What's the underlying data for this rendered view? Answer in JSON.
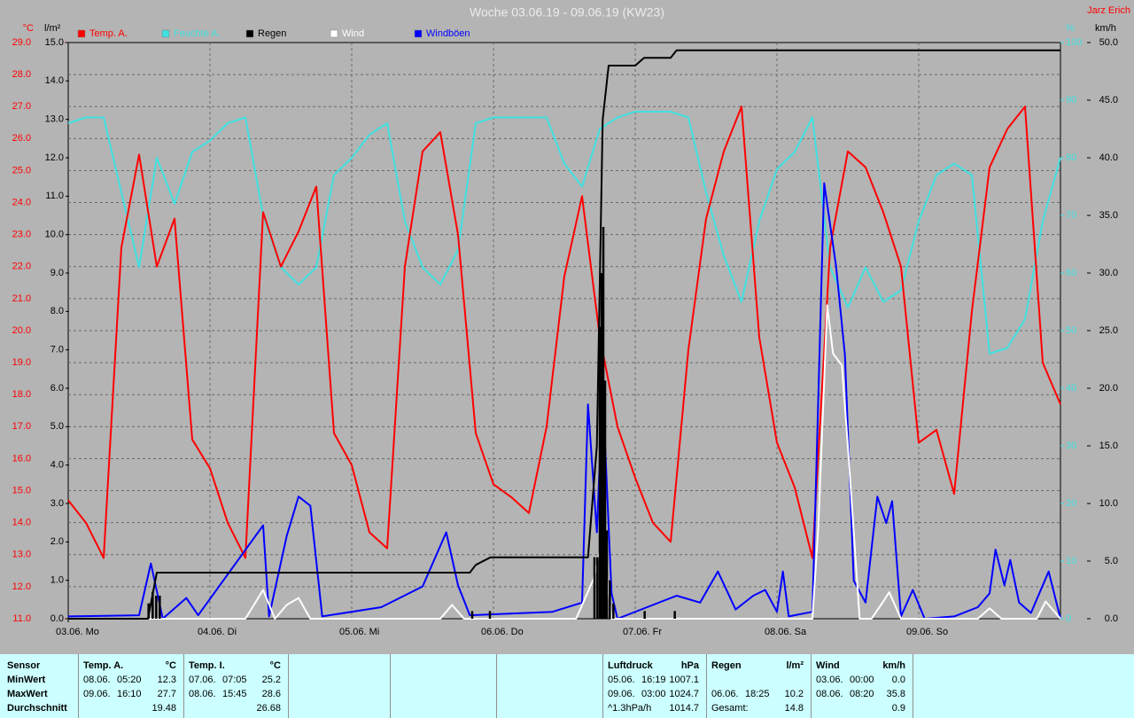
{
  "chart_data": {
    "type": "line",
    "title": "Woche 03.06.19 - 09.06.19 (KW23)",
    "author": "Jarz Erich",
    "x": [
      0,
      3,
      6,
      9,
      12,
      15,
      18,
      21,
      24,
      27,
      30,
      33,
      36,
      39,
      42,
      45,
      48,
      51,
      54,
      57,
      60,
      63,
      66,
      69,
      72,
      75,
      78,
      81,
      84,
      87,
      90,
      93,
      96,
      99,
      102,
      105,
      108,
      111,
      114,
      117,
      120,
      123,
      126,
      129,
      132,
      135,
      138,
      141,
      144,
      147,
      150,
      153,
      156,
      159,
      162,
      165,
      168
    ],
    "xlim": [
      0,
      168
    ],
    "xticks": [
      {
        "value": 0,
        "label": "03.06. Mo"
      },
      {
        "value": 24,
        "label": "04.06. Di"
      },
      {
        "value": 48,
        "label": "05.06. Mi"
      },
      {
        "value": 72,
        "label": "06.06. Do"
      },
      {
        "value": 96,
        "label": "07.06. Fr"
      },
      {
        "value": 120,
        "label": "08.06. Sa"
      },
      {
        "value": 144,
        "label": "09.06. So"
      }
    ],
    "ylabel": "°C",
    "ylim": [
      11,
      29
    ],
    "yticks": [
      {
        "value": 11,
        "label": "11.0"
      },
      {
        "value": 12,
        "label": "12.0"
      },
      {
        "value": 13,
        "label": "13.0"
      },
      {
        "value": 14,
        "label": "14.0"
      },
      {
        "value": 15,
        "label": "15.0"
      },
      {
        "value": 16,
        "label": "16.0"
      },
      {
        "value": 17,
        "label": "17.0"
      },
      {
        "value": 18,
        "label": "18.0"
      },
      {
        "value": 19,
        "label": "19.0"
      },
      {
        "value": 20,
        "label": "20.0"
      },
      {
        "value": 21,
        "label": "21.0"
      },
      {
        "value": 22,
        "label": "22.0"
      },
      {
        "value": 23,
        "label": "23.0"
      },
      {
        "value": 24,
        "label": "24.0"
      },
      {
        "value": 25,
        "label": "25.0"
      },
      {
        "value": 26,
        "label": "26.0"
      },
      {
        "value": 27,
        "label": "27.0"
      },
      {
        "value": 28,
        "label": "28.0"
      },
      {
        "value": 29,
        "label": "29.0"
      }
    ],
    "y2label": "%",
    "y2lim": [
      0,
      100
    ],
    "y2ticks": [
      0,
      10,
      20,
      30,
      40,
      50,
      60,
      70,
      80,
      90,
      100
    ],
    "y3label": "l/m²",
    "y3lim": [
      0,
      15
    ],
    "y3ticks": [
      {
        "value": 0,
        "label": "0.0"
      },
      {
        "value": 1,
        "label": "1.0"
      },
      {
        "value": 2,
        "label": "2.0"
      },
      {
        "value": 3,
        "label": "3.0"
      },
      {
        "value": 4,
        "label": "4.0"
      },
      {
        "value": 5,
        "label": "5.0"
      },
      {
        "value": 6,
        "label": "6.0"
      },
      {
        "value": 7,
        "label": "7.0"
      },
      {
        "value": 8,
        "label": "8.0"
      },
      {
        "value": 9,
        "label": "9.0"
      },
      {
        "value": 10,
        "label": "10.0"
      },
      {
        "value": 11,
        "label": "11.0"
      },
      {
        "value": 12,
        "label": "12.0"
      },
      {
        "value": 13,
        "label": "13.0"
      },
      {
        "value": 14,
        "label": "14.0"
      },
      {
        "value": 15,
        "label": "15.0"
      }
    ],
    "y4label": "km/h",
    "y4lim": [
      0,
      50
    ],
    "y4ticks": [
      {
        "value": 0,
        "label": "0.0"
      },
      {
        "value": 5,
        "label": "5.0"
      },
      {
        "value": 10,
        "label": "10.0"
      },
      {
        "value": 15,
        "label": "15.0"
      },
      {
        "value": 20,
        "label": "20.0"
      },
      {
        "value": 25,
        "label": "25.0"
      },
      {
        "value": 30,
        "label": "30.0"
      },
      {
        "value": 35,
        "label": "35.0"
      },
      {
        "value": 40,
        "label": "40.0"
      },
      {
        "value": 45,
        "label": "45.0"
      },
      {
        "value": 50,
        "label": "50.0"
      }
    ],
    "grid": true,
    "series": [
      {
        "name": "Temp. A.",
        "color": "#ff0000",
        "axis": "y",
        "values": [
          14.7,
          14.0,
          12.9,
          22.6,
          25.5,
          22.0,
          23.5,
          16.6,
          15.7,
          14.0,
          12.9,
          23.7,
          22.0,
          23.1,
          24.5,
          16.8,
          15.8,
          13.7,
          13.2,
          22.0,
          25.6,
          26.2,
          23.0,
          16.8,
          15.2,
          14.8,
          14.3,
          17.0,
          21.7,
          24.2,
          19.8,
          17.0,
          15.4,
          14.0,
          13.4,
          19.4,
          23.5,
          25.6,
          27.0,
          19.8,
          16.5,
          15.1,
          12.9,
          22.6,
          25.6,
          25.1,
          23.7,
          22.0,
          16.5,
          16.9,
          14.9,
          20.6,
          25.1,
          26.3,
          27.0,
          19.0,
          17.7
        ]
      },
      {
        "name": "Feuchte A.",
        "color": "#40e0e0",
        "axis": "y2",
        "values": [
          86,
          87,
          87,
          74,
          61,
          80,
          72,
          81,
          83,
          86,
          87,
          70,
          61,
          58,
          61,
          77,
          80,
          84,
          86,
          69,
          61,
          58,
          64,
          86,
          87,
          87,
          87,
          87,
          79,
          75,
          85,
          87,
          88,
          88,
          88,
          87,
          74,
          63,
          55,
          69,
          78,
          81,
          87,
          61,
          54,
          61,
          55,
          57,
          69,
          77,
          79,
          77,
          46,
          47,
          52,
          69,
          80
        ]
      },
      {
        "name": "Regen",
        "color": "#000000",
        "axis": "y3",
        "x": [
          0,
          13.5,
          15,
          68,
          69,
          71.5,
          88,
          89.5,
          90.5,
          91.5,
          96,
          97.5,
          102,
          103,
          168
        ],
        "values": [
          0,
          0,
          1.2,
          1.2,
          1.4,
          1.6,
          1.6,
          4.5,
          13.0,
          14.4,
          14.4,
          14.6,
          14.6,
          14.8,
          14.8
        ],
        "bars": {
          "x": [
            13.6,
            14.3,
            14.9,
            15.5,
            68.4,
            71.4,
            89.1,
            89.6,
            90.0,
            90.3,
            90.6,
            90.9,
            91.2,
            91.7,
            92.3,
            97.6,
            102.7
          ],
          "values": [
            0.4,
            0.7,
            0.6,
            0.6,
            0.2,
            0.2,
            1.6,
            1.6,
            7.6,
            9.0,
            10.2,
            6.2,
            2.3,
            1.0,
            0.4,
            0.2,
            0.2
          ]
        }
      },
      {
        "name": "Wind",
        "color": "#ffffff",
        "axis": "y4",
        "x": [
          0,
          30,
          33,
          35,
          37,
          39,
          41,
          63,
          65,
          67,
          86,
          89,
          90.5,
          92,
          126,
          127,
          128.5,
          129.5,
          131,
          132,
          133,
          134,
          136,
          138,
          139,
          141,
          154,
          156,
          158,
          164,
          165.5,
          168
        ],
        "values": [
          0,
          0,
          2.5,
          0,
          1.2,
          1.8,
          0,
          0,
          1.2,
          0,
          0,
          3.5,
          7,
          0,
          0,
          8,
          27.2,
          23,
          22,
          15,
          7.5,
          0,
          0,
          1.5,
          2.3,
          0,
          0,
          0.9,
          0,
          0,
          1.5,
          0
        ]
      },
      {
        "name": "Windböen",
        "color": "#0000ff",
        "axis": "y4",
        "x": [
          0,
          12,
          14,
          16,
          20,
          22,
          33,
          34,
          37,
          39,
          41,
          43,
          53,
          60,
          64,
          66,
          68,
          82,
          87,
          88,
          89.5,
          90.5,
          92,
          93,
          103,
          107,
          110,
          113,
          116,
          118,
          120,
          121,
          122,
          126,
          128,
          130,
          131.5,
          133,
          135,
          137,
          138.5,
          139.5,
          141,
          143,
          145,
          150,
          154,
          156,
          157,
          158.5,
          159.5,
          161,
          163,
          166,
          168
        ],
        "values": [
          0.2,
          0.3,
          4.8,
          0,
          1.8,
          0.3,
          8.1,
          0.2,
          7.2,
          10.6,
          9.8,
          0.2,
          1.0,
          2.8,
          7.5,
          2.9,
          0.3,
          0.6,
          1.4,
          18.6,
          7.5,
          19.8,
          2.2,
          0,
          2.0,
          1.4,
          4.1,
          0.8,
          2.0,
          2.5,
          0.6,
          4.1,
          0.2,
          0.6,
          37.8,
          30.6,
          22.9,
          3.3,
          1.4,
          10.6,
          8.3,
          10.2,
          0.2,
          2.5,
          0,
          0.2,
          1.0,
          2.2,
          6.0,
          2.9,
          5.1,
          1.4,
          0.5,
          4.1,
          0
        ]
      }
    ]
  },
  "table": {
    "corner": "Sensor",
    "columns": [
      {
        "title": "Temp. A.",
        "unit": "°C"
      },
      {
        "title": "Temp. I.",
        "unit": "°C"
      },
      {
        "title": "Luftdruck",
        "unit": "hPa"
      },
      {
        "title": "Regen",
        "unit": "l/m²"
      },
      {
        "title": "Wind",
        "unit": "km/h"
      }
    ],
    "rows": [
      {
        "label": "MinWert",
        "cells": [
          [
            "08.06.",
            "05:20",
            "12.3"
          ],
          [
            "07.06.",
            "07:05",
            "25.2"
          ],
          [
            "05.06.",
            "16:19",
            "1007.1"
          ],
          [],
          [
            "03.06.",
            "00:00",
            "0.0"
          ]
        ]
      },
      {
        "label": "MaxWert",
        "cells": [
          [
            "09.06.",
            "16:10",
            "27.7"
          ],
          [
            "08.06.",
            "15:45",
            "28.6"
          ],
          [
            "09.06.",
            "03:00",
            "1024.7"
          ],
          [
            "06.06.",
            "18:25",
            "10.2"
          ],
          [
            "08.06.",
            "08:20",
            "35.8"
          ]
        ]
      },
      {
        "label": "Durchschnitt",
        "cells": [
          [
            "19.48"
          ],
          [
            "26.68"
          ],
          [
            "^1.3hPa/h",
            "1014.7"
          ],
          [
            "Gesamt:",
            "14.8"
          ],
          [
            "0.9"
          ]
        ]
      }
    ]
  }
}
